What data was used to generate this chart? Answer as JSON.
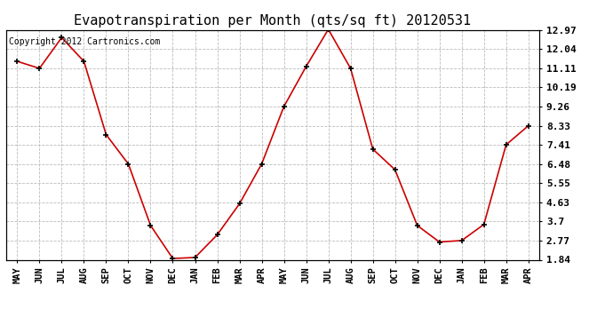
{
  "title": "Evapotranspiration per Month (qts/sq ft) 20120531",
  "copyright": "Copyright 2012 Cartronics.com",
  "months": [
    "MAY",
    "JUN",
    "JUL",
    "AUG",
    "SEP",
    "OCT",
    "NOV",
    "DEC",
    "JAN",
    "FEB",
    "MAR",
    "APR",
    "MAY",
    "JUN",
    "JUL",
    "AUG",
    "SEP",
    "OCT",
    "NOV",
    "DEC",
    "JAN",
    "FEB",
    "MAR",
    "APR"
  ],
  "values": [
    11.45,
    11.11,
    12.6,
    11.45,
    7.9,
    6.48,
    3.5,
    1.9,
    1.95,
    3.05,
    4.55,
    6.48,
    9.26,
    11.2,
    13.0,
    11.11,
    7.2,
    6.2,
    3.5,
    2.7,
    2.77,
    3.55,
    7.41,
    8.33
  ],
  "line_color": "#cc0000",
  "marker": "+",
  "marker_size": 5,
  "marker_color": "#000000",
  "bg_color": "#ffffff",
  "grid_color": "#bbbbbb",
  "yticks": [
    1.84,
    2.77,
    3.7,
    4.63,
    5.55,
    6.48,
    7.41,
    8.33,
    9.26,
    10.19,
    11.11,
    12.04,
    12.97
  ],
  "ylim": [
    1.84,
    12.97
  ],
  "title_fontsize": 11,
  "copyright_fontsize": 7,
  "tick_fontsize": 7.5,
  "ytick_fontsize": 8
}
